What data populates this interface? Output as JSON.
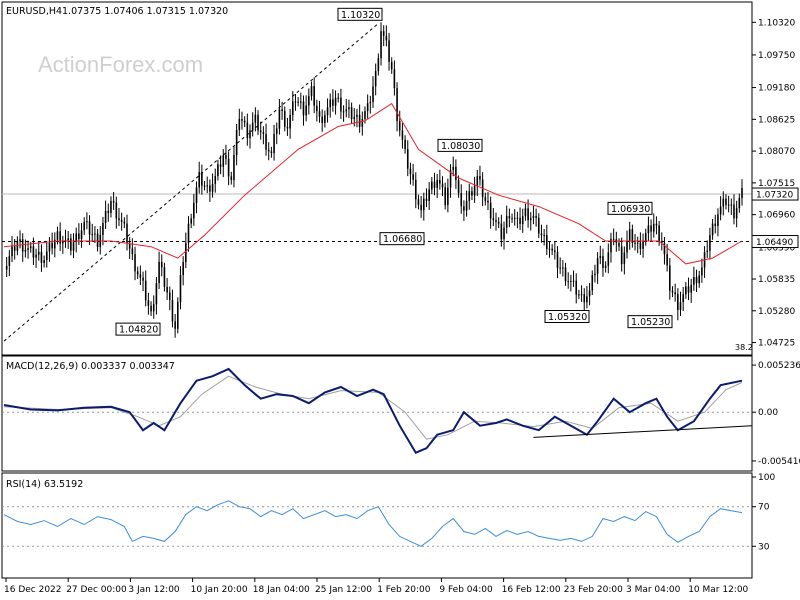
{
  "header": {
    "symbol": "EURUSD,H4",
    "ohlc": "1.07375 1.07406 1.07315 1.07320"
  },
  "watermark": "ActionForex.com",
  "colors": {
    "candles": "#000000",
    "moving_average": "#e8202a",
    "macd_line": "#0b1b6f",
    "signal_line": "#a0a0a0",
    "rsi_line": "#3c8fd6",
    "trend_lines": "#000000"
  },
  "chart_data": [
    {
      "type": "candlestick",
      "title": "EURUSD,H4",
      "ylim": [
        1.0456,
        1.1064
      ],
      "y_ticks": [
        "1.10320",
        "1.09750",
        "1.09180",
        "1.08625",
        "1.08070",
        "1.07515",
        "1.06960",
        "1.06390",
        "1.05835",
        "1.05280",
        "1.04725"
      ],
      "x_ticks": [
        "16 Dec 2022",
        "27 Dec 00:00",
        "3 Jan 12:00",
        "10 Jan 20:00",
        "18 Jan 04:00",
        "25 Jan 12:00",
        "1 Feb 20:00",
        "9 Feb 04:00",
        "16 Feb 12:00",
        "23 Feb 20:00",
        "3 Mar 04:00",
        "10 Mar 12:00"
      ],
      "current_price": "1.07320",
      "horizontal_level": "1.06490",
      "fib_label": "38.2",
      "annotations": [
        {
          "label": "1.10320",
          "value": 1.1032
        },
        {
          "label": "1.04820",
          "value": 1.0482
        },
        {
          "label": "1.06680",
          "value": 1.0668
        },
        {
          "label": "1.08030",
          "value": 1.0803
        },
        {
          "label": "1.05320",
          "value": 1.0532
        },
        {
          "label": "1.06930",
          "value": 1.0693
        },
        {
          "label": "1.05230",
          "value": 1.0523
        }
      ],
      "close_path": [
        [
          0,
          1.06
        ],
        [
          5,
          1.065
        ],
        [
          10,
          1.063
        ],
        [
          15,
          1.062
        ],
        [
          20,
          1.066
        ],
        [
          25,
          1.064
        ],
        [
          30,
          1.068
        ],
        [
          35,
          1.065
        ],
        [
          40,
          1.072
        ],
        [
          45,
          1.067
        ],
        [
          48,
          1.062
        ],
        [
          52,
          1.057
        ],
        [
          55,
          1.052
        ],
        [
          58,
          1.061
        ],
        [
          61,
          1.056
        ],
        [
          64,
          1.05
        ],
        [
          67,
          1.062
        ],
        [
          70,
          1.07
        ],
        [
          73,
          1.076
        ],
        [
          76,
          1.074
        ],
        [
          79,
          1.076
        ],
        [
          82,
          1.08
        ],
        [
          85,
          1.076
        ],
        [
          88,
          1.087
        ],
        [
          91,
          1.084
        ],
        [
          94,
          1.086
        ],
        [
          97,
          1.083
        ],
        [
          100,
          1.08
        ],
        [
          103,
          1.088
        ],
        [
          106,
          1.085
        ],
        [
          109,
          1.09
        ],
        [
          112,
          1.088
        ],
        [
          115,
          1.091
        ],
        [
          118,
          1.086
        ],
        [
          121,
          1.088
        ],
        [
          124,
          1.09
        ],
        [
          127,
          1.088
        ],
        [
          130,
          1.087
        ],
        [
          133,
          1.086
        ],
        [
          136,
          1.088
        ],
        [
          139,
          1.094
        ],
        [
          141,
          1.102
        ],
        [
          143,
          1.099
        ],
        [
          145,
          1.095
        ],
        [
          147,
          1.087
        ],
        [
          150,
          1.08
        ],
        [
          153,
          1.075
        ],
        [
          156,
          1.07
        ],
        [
          159,
          1.074
        ],
        [
          162,
          1.076
        ],
        [
          165,
          1.072
        ],
        [
          168,
          1.079
        ],
        [
          171,
          1.07
        ],
        [
          174,
          1.073
        ],
        [
          177,
          1.076
        ],
        [
          180,
          1.072
        ],
        [
          183,
          1.069
        ],
        [
          186,
          1.066
        ],
        [
          189,
          1.07
        ],
        [
          192,
          1.068
        ],
        [
          195,
          1.07
        ],
        [
          198,
          1.069
        ],
        [
          201,
          1.066
        ],
        [
          204,
          1.064
        ],
        [
          207,
          1.061
        ],
        [
          210,
          1.059
        ],
        [
          213,
          1.057
        ],
        [
          216,
          1.055
        ],
        [
          219,
          1.056
        ],
        [
          222,
          1.062
        ],
        [
          225,
          1.061
        ],
        [
          228,
          1.066
        ],
        [
          231,
          1.062
        ],
        [
          234,
          1.066
        ],
        [
          237,
          1.064
        ],
        [
          240,
          1.066
        ],
        [
          243,
          1.068
        ],
        [
          246,
          1.065
        ],
        [
          249,
          1.057
        ],
        [
          252,
          1.054
        ],
        [
          255,
          1.056
        ],
        [
          258,
          1.058
        ],
        [
          261,
          1.06
        ],
        [
          264,
          1.066
        ],
        [
          267,
          1.07
        ],
        [
          270,
          1.072
        ],
        [
          273,
          1.07
        ],
        [
          276,
          1.0732
        ]
      ],
      "moving_average": [
        [
          0,
          1.064
        ],
        [
          20,
          1.065
        ],
        [
          40,
          1.065
        ],
        [
          55,
          1.064
        ],
        [
          65,
          1.062
        ],
        [
          75,
          1.066
        ],
        [
          90,
          1.073
        ],
        [
          110,
          1.081
        ],
        [
          125,
          1.085
        ],
        [
          135,
          1.086
        ],
        [
          145,
          1.089
        ],
        [
          155,
          1.081
        ],
        [
          170,
          1.076
        ],
        [
          185,
          1.073
        ],
        [
          200,
          1.071
        ],
        [
          215,
          1.068
        ],
        [
          225,
          1.065
        ],
        [
          235,
          1.065
        ],
        [
          245,
          1.065
        ],
        [
          255,
          1.061
        ],
        [
          265,
          1.062
        ],
        [
          276,
          1.065
        ]
      ]
    },
    {
      "type": "line",
      "title": "MACD(12,26,9) 0.003337 0.003347",
      "ylim": [
        -0.0062,
        0.0058
      ],
      "y_ticks": [
        "0.005236",
        "0.00",
        "-0.005416"
      ],
      "zero_level": 0,
      "macd": [
        [
          0,
          0.0008
        ],
        [
          10,
          0.0003
        ],
        [
          20,
          0.0002
        ],
        [
          30,
          0.0005
        ],
        [
          40,
          0.0006
        ],
        [
          47,
          0.0
        ],
        [
          52,
          -0.002
        ],
        [
          56,
          -0.0012
        ],
        [
          60,
          -0.002
        ],
        [
          66,
          0.001
        ],
        [
          72,
          0.0035
        ],
        [
          78,
          0.004
        ],
        [
          84,
          0.0048
        ],
        [
          90,
          0.003
        ],
        [
          96,
          0.0015
        ],
        [
          102,
          0.002
        ],
        [
          108,
          0.0018
        ],
        [
          114,
          0.001
        ],
        [
          120,
          0.0022
        ],
        [
          126,
          0.0028
        ],
        [
          132,
          0.0018
        ],
        [
          138,
          0.0025
        ],
        [
          142,
          0.002
        ],
        [
          148,
          -0.0015
        ],
        [
          154,
          -0.0045
        ],
        [
          158,
          -0.004
        ],
        [
          162,
          -0.0025
        ],
        [
          168,
          -0.002
        ],
        [
          172,
          0.0
        ],
        [
          178,
          -0.0015
        ],
        [
          184,
          -0.0012
        ],
        [
          188,
          -0.0008
        ],
        [
          194,
          -0.0015
        ],
        [
          200,
          -0.002
        ],
        [
          206,
          -0.0005
        ],
        [
          212,
          -0.0015
        ],
        [
          218,
          -0.0025
        ],
        [
          222,
          -0.001
        ],
        [
          228,
          0.0015
        ],
        [
          234,
          0.0
        ],
        [
          240,
          0.001
        ],
        [
          244,
          0.0015
        ],
        [
          248,
          -0.0005
        ],
        [
          252,
          -0.002
        ],
        [
          258,
          -0.001
        ],
        [
          264,
          0.0015
        ],
        [
          268,
          0.003
        ],
        [
          276,
          0.0035
        ]
      ],
      "signal": [
        [
          0,
          0.0006
        ],
        [
          20,
          0.0003
        ],
        [
          40,
          0.0005
        ],
        [
          50,
          -0.0005
        ],
        [
          58,
          -0.0015
        ],
        [
          66,
          -0.0005
        ],
        [
          74,
          0.002
        ],
        [
          84,
          0.004
        ],
        [
          94,
          0.0028
        ],
        [
          104,
          0.002
        ],
        [
          114,
          0.0015
        ],
        [
          126,
          0.0024
        ],
        [
          140,
          0.0022
        ],
        [
          150,
          0.0
        ],
        [
          158,
          -0.003
        ],
        [
          166,
          -0.0025
        ],
        [
          176,
          -0.001
        ],
        [
          186,
          -0.0012
        ],
        [
          198,
          -0.0016
        ],
        [
          210,
          -0.001
        ],
        [
          220,
          -0.0018
        ],
        [
          230,
          0.0005
        ],
        [
          242,
          0.001
        ],
        [
          252,
          -0.001
        ],
        [
          262,
          0.0
        ],
        [
          270,
          0.0025
        ],
        [
          276,
          0.0033
        ]
      ]
    },
    {
      "type": "line",
      "title": "RSI(14) 63.5192",
      "ylim": [
        0,
        100
      ],
      "y_ticks": [
        "100",
        "70",
        "30",
        "0"
      ],
      "levels": [
        70,
        30
      ],
      "rsi": [
        [
          0,
          62
        ],
        [
          5,
          55
        ],
        [
          10,
          52
        ],
        [
          15,
          56
        ],
        [
          20,
          50
        ],
        [
          25,
          58
        ],
        [
          30,
          52
        ],
        [
          35,
          60
        ],
        [
          40,
          57
        ],
        [
          45,
          50
        ],
        [
          48,
          35
        ],
        [
          52,
          40
        ],
        [
          56,
          38
        ],
        [
          60,
          35
        ],
        [
          64,
          45
        ],
        [
          68,
          62
        ],
        [
          72,
          70
        ],
        [
          76,
          66
        ],
        [
          80,
          72
        ],
        [
          84,
          76
        ],
        [
          88,
          70
        ],
        [
          92,
          68
        ],
        [
          96,
          60
        ],
        [
          100,
          66
        ],
        [
          104,
          62
        ],
        [
          108,
          68
        ],
        [
          112,
          58
        ],
        [
          116,
          62
        ],
        [
          120,
          66
        ],
        [
          124,
          60
        ],
        [
          128,
          62
        ],
        [
          132,
          58
        ],
        [
          136,
          66
        ],
        [
          140,
          70
        ],
        [
          144,
          52
        ],
        [
          148,
          40
        ],
        [
          152,
          35
        ],
        [
          156,
          30
        ],
        [
          160,
          38
        ],
        [
          164,
          50
        ],
        [
          168,
          58
        ],
        [
          172,
          45
        ],
        [
          176,
          42
        ],
        [
          180,
          48
        ],
        [
          184,
          40
        ],
        [
          188,
          46
        ],
        [
          192,
          42
        ],
        [
          196,
          45
        ],
        [
          200,
          40
        ],
        [
          204,
          38
        ],
        [
          208,
          36
        ],
        [
          212,
          38
        ],
        [
          216,
          35
        ],
        [
          220,
          40
        ],
        [
          224,
          58
        ],
        [
          228,
          55
        ],
        [
          232,
          60
        ],
        [
          236,
          56
        ],
        [
          240,
          65
        ],
        [
          244,
          60
        ],
        [
          248,
          42
        ],
        [
          252,
          34
        ],
        [
          256,
          40
        ],
        [
          260,
          45
        ],
        [
          264,
          60
        ],
        [
          268,
          68
        ],
        [
          272,
          66
        ],
        [
          276,
          64
        ]
      ]
    }
  ]
}
